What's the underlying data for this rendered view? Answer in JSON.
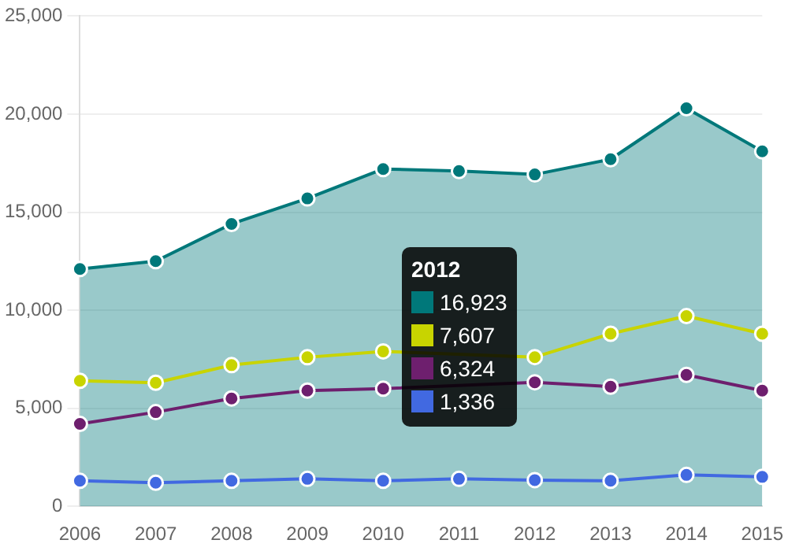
{
  "chart_data": {
    "type": "line",
    "categories": [
      "2006",
      "2007",
      "2008",
      "2009",
      "2010",
      "2011",
      "2012",
      "2013",
      "2014",
      "2015"
    ],
    "series": [
      {
        "type": "area",
        "color": "#00787a",
        "values": [
          12100,
          12500,
          14400,
          15700,
          17200,
          17100,
          16923,
          17700,
          20300,
          18100
        ]
      },
      {
        "color": "#c8d400",
        "values": [
          6400,
          6300,
          7200,
          7600,
          7900,
          null,
          7607,
          8800,
          9700,
          8800
        ]
      },
      {
        "color": "#6e1f6e",
        "values": [
          4200,
          4800,
          5500,
          5900,
          6000,
          null,
          6324,
          6100,
          6700,
          5900
        ]
      },
      {
        "color": "#4169e1",
        "values": [
          1300,
          1200,
          1300,
          1400,
          1300,
          1400,
          1336,
          1300,
          1600,
          1500
        ]
      }
    ],
    "annotations": [
      "2012",
      "16,923",
      "7,607",
      "6,324",
      "1,336"
    ],
    "ylim": [
      0,
      25000
    ],
    "yticks": [
      {
        "value": 0,
        "label": "0"
      },
      {
        "value": 5000,
        "label": "5,000"
      },
      {
        "value": 10000,
        "label": "10,000"
      },
      {
        "value": 15000,
        "label": "15,000"
      },
      {
        "value": 20000,
        "label": "20,000"
      },
      {
        "value": 25000,
        "label": "25,000"
      }
    ],
    "grid": "y",
    "legend": false,
    "marker": "circle",
    "line_style": "solid"
  }
}
